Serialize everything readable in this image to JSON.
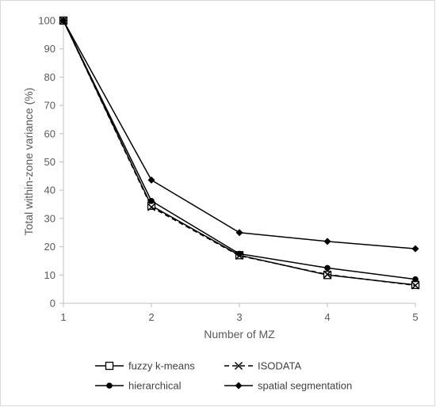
{
  "chart_data": {
    "type": "line",
    "title": "",
    "xlabel": "Number of MZ",
    "ylabel": "Total within-zone variance (%)",
    "xlim": [
      1,
      5
    ],
    "ylim": [
      0,
      100
    ],
    "x_ticks": [
      "1",
      "2",
      "3",
      "4",
      "5"
    ],
    "y_ticks": [
      "0",
      "10",
      "20",
      "30",
      "40",
      "50",
      "60",
      "70",
      "80",
      "90",
      "100"
    ],
    "grid": false,
    "legend_position": "bottom",
    "x": [
      1,
      2,
      3,
      4,
      5
    ],
    "series": [
      {
        "name": "fuzzy k-means",
        "values": [
          100,
          34.5,
          17.0,
          10.0,
          6.5
        ],
        "marker": "open-square",
        "dash": "solid"
      },
      {
        "name": "ISODATA",
        "values": [
          100,
          34.0,
          16.8,
          10.2,
          6.3
        ],
        "marker": "x",
        "dash": "dashed"
      },
      {
        "name": "hierarchical",
        "values": [
          100,
          36.2,
          17.5,
          12.5,
          8.5
        ],
        "marker": "filled-circle",
        "dash": "solid"
      },
      {
        "name": "spatial segmentation",
        "values": [
          100,
          43.6,
          25.0,
          21.9,
          19.3
        ],
        "marker": "filled-diamond",
        "dash": "solid"
      }
    ]
  }
}
